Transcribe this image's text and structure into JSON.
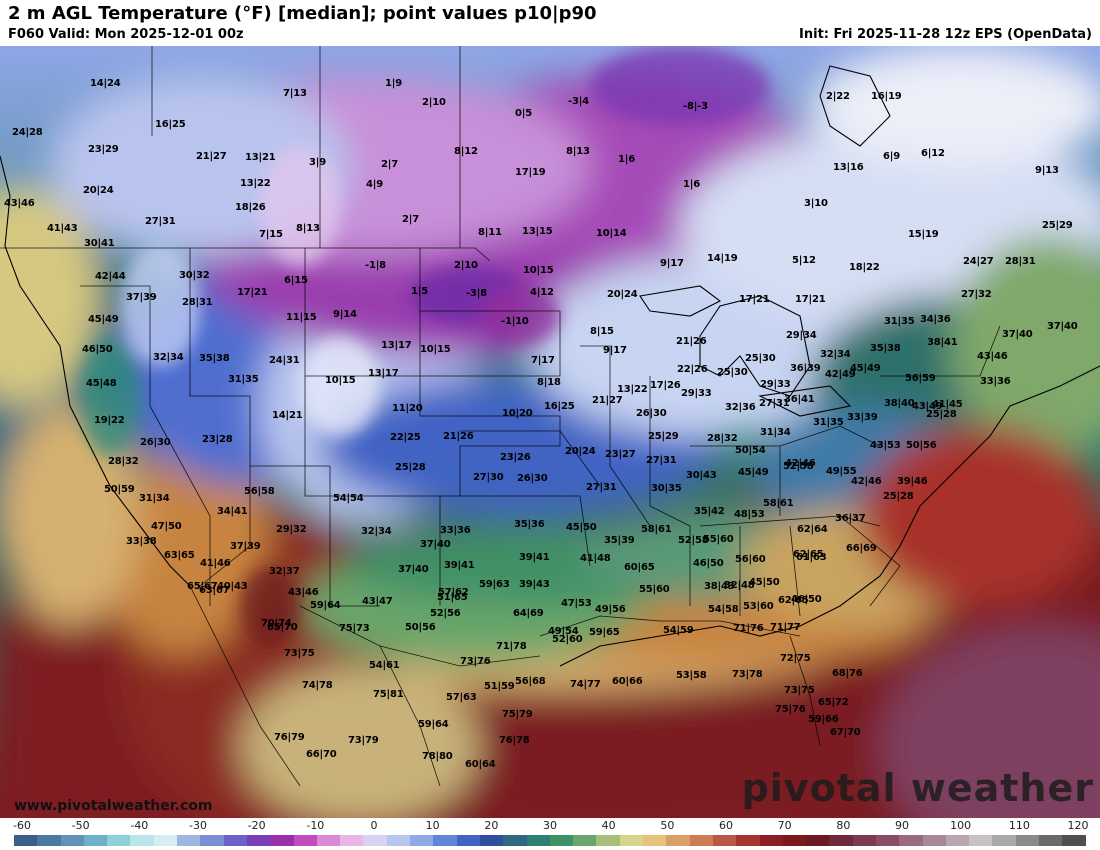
{
  "header": {
    "title": "2 m AGL Temperature (°F) [median]; point values p10|p90",
    "valid": "F060 Valid: Mon 2025-12-01 00z",
    "init": "Init: Fri 2025-11-28 12z EPS (OpenData)"
  },
  "footer": {
    "website": "www.pivotalweather.com",
    "brand": "pivotal weather"
  },
  "colorbar": {
    "unit": "°F",
    "ticks": [
      "-60",
      "-50",
      "-40",
      "-30",
      "-20",
      "-10",
      "0",
      "10",
      "20",
      "30",
      "40",
      "50",
      "60",
      "70",
      "80",
      "90",
      "100",
      "110",
      "120"
    ],
    "colors": [
      "#3a5f8a",
      "#4a7aa3",
      "#5f93b8",
      "#6fb0c9",
      "#8fd0d8",
      "#b8e6ea",
      "#d6eef2",
      "#9db8e0",
      "#7a8fd4",
      "#6e62c6",
      "#7a3fb4",
      "#9a2fa8",
      "#c04cc0",
      "#d98ad6",
      "#e9b6e6",
      "#d8d2f0",
      "#b7c6ef",
      "#8fa9e6",
      "#5f86d8",
      "#3f64c4",
      "#2f4f9e",
      "#2d6a82",
      "#2f7f72",
      "#3f9166",
      "#6aa66a",
      "#a6c07a",
      "#d6d58c",
      "#e6c27a",
      "#dba067",
      "#cd7d55",
      "#b95844",
      "#a3342f",
      "#8c1f24",
      "#7a1a1f",
      "#6b1a22",
      "#6f2a3a",
      "#7a3a4f",
      "#8a4c66",
      "#9a6a80",
      "#a68896",
      "#b8a6b0",
      "#c7c2c4",
      "#a9a9a9",
      "#8a8a8a",
      "#6a6a6a",
      "#4f4f4f"
    ],
    "icons": {
      "legend": "color-scale"
    }
  },
  "point_values": [
    "14|24",
    "7|13",
    "1|9",
    "2|10",
    "0|5",
    "-3|4",
    "-8|-3",
    "24|28",
    "16|25",
    "21|27",
    "13|21",
    "3|9",
    "2|7",
    "8|12",
    "17|19",
    "8|13",
    "1|6",
    "2|22",
    "16|19",
    "23|29",
    "13|22",
    "4|9",
    "1|6",
    "13|16",
    "6|9",
    "6|12",
    "9|13",
    "20|24",
    "18|26",
    "3|10",
    "43|46",
    "27|31",
    "2|7",
    "41|43",
    "7|15",
    "8|13",
    "8|11",
    "13|15",
    "10|14",
    "15|19",
    "25|29",
    "30|41",
    "-1|8",
    "2|10",
    "9|17",
    "14|19",
    "5|12",
    "18|22",
    "24|27",
    "28|31",
    "42|44",
    "30|32",
    "17|21",
    "6|15",
    "10|15",
    "1|5",
    "-3|8",
    "4|12",
    "20|24",
    "37|39",
    "28|31",
    "11|15",
    "9|14",
    "-1|10",
    "17|21",
    "17|21",
    "27|32",
    "45|49",
    "31|35",
    "34|36",
    "37|40",
    "37|40",
    "46|50",
    "13|17",
    "10|15",
    "8|15",
    "21|26",
    "29|34",
    "32|34",
    "35|38",
    "24|31",
    "13|17",
    "7|17",
    "9|17",
    "22|26",
    "25|30",
    "32|34",
    "35|38",
    "38|41",
    "43|46",
    "45|48",
    "31|35",
    "10|15",
    "8|18",
    "13|22",
    "17|26",
    "25|30",
    "29|33",
    "36|39",
    "45|49",
    "56|59",
    "33|36",
    "19|22",
    "14|21",
    "11|20",
    "10|20",
    "16|25",
    "21|27",
    "26|30",
    "29|33",
    "32|36",
    "27|31",
    "36|41",
    "42|49",
    "43|49",
    "41|45",
    "26|30",
    "23|28",
    "22|25",
    "21|26",
    "25|29",
    "28|32",
    "31|34",
    "31|35",
    "33|39",
    "38|40",
    "25|28",
    "23|26",
    "20|24",
    "23|27",
    "27|31",
    "50|54",
    "42|46",
    "43|53",
    "50|56",
    "28|32",
    "25|28",
    "27|30",
    "26|30",
    "27|31",
    "30|35",
    "30|43",
    "45|49",
    "52|58",
    "49|55",
    "42|46",
    "25|28",
    "39|46",
    "50|59",
    "56|58",
    "54|54",
    "31|34",
    "34|41",
    "35|42",
    "48|53",
    "58|61",
    "36|37",
    "47|50",
    "29|32",
    "32|34",
    "33|36",
    "35|36",
    "45|50",
    "58|61",
    "62|64",
    "33|38",
    "37|39",
    "37|40",
    "35|39",
    "52|58",
    "55|60",
    "62|65",
    "66|69",
    "63|65",
    "41|46",
    "32|37",
    "37|40",
    "39|41",
    "39|41",
    "41|48",
    "46|50",
    "56|60",
    "61|63",
    "65|67",
    "63|67",
    "40|43",
    "43|46",
    "57|62",
    "39|43",
    "32|48",
    "52|56",
    "59|63",
    "60|65",
    "55|60",
    "38|43",
    "45|50",
    "46|50",
    "70|74",
    "59|64",
    "43|47",
    "51|65",
    "47|53",
    "49|56",
    "54|58",
    "53|60",
    "62|65",
    "65|70",
    "75|73",
    "50|56",
    "64|69",
    "49|54",
    "59|65",
    "54|59",
    "71|76",
    "71|77",
    "72|75",
    "73|75",
    "71|78",
    "52|60",
    "54|61",
    "73|76",
    "74|77",
    "60|66",
    "53|58",
    "73|78",
    "74|78",
    "51|59",
    "56|68",
    "73|75",
    "65|72",
    "68|76",
    "75|81",
    "57|63",
    "75|76",
    "75|79",
    "59|66",
    "59|64",
    "76|79",
    "73|79",
    "76|78",
    "66|70",
    "67|70",
    "78|80",
    "60|64"
  ]
}
